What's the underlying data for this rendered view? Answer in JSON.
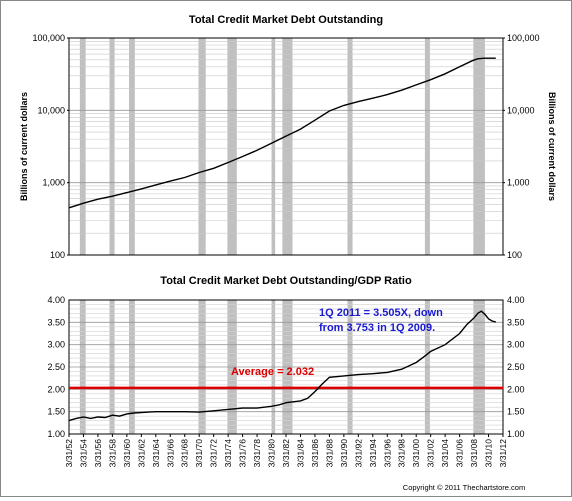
{
  "chart_data": [
    {
      "type": "line",
      "title": "Total Credit Market Debt Outstanding",
      "ylabel_left": "Billions of current dollars",
      "ylabel_right": "Billions of current dollars",
      "yscale": "log",
      "ylim": [
        100,
        100000
      ],
      "yticks": [
        "100,000",
        "10,000",
        "1,000",
        "100"
      ],
      "grid": true,
      "x": [
        1952.0,
        1954.0,
        1956.0,
        1958.0,
        1960.0,
        1962.0,
        1964.0,
        1966.0,
        1968.0,
        1970.0,
        1972.0,
        1974.0,
        1976.0,
        1978.0,
        1980.0,
        1982.0,
        1984.0,
        1986.0,
        1988.0,
        1990.0,
        1992.0,
        1994.0,
        1996.0,
        1998.0,
        2000.0,
        2002.0,
        2004.0,
        2006.0,
        2007.75,
        2008.5,
        2009.5,
        2011.0
      ],
      "series": [
        {
          "values": [
            450,
            520,
            590,
            650,
            730,
            820,
            930,
            1050,
            1180,
            1380,
            1580,
            1900,
            2300,
            2800,
            3500,
            4400,
            5500,
            7300,
            9800,
            11700,
            13200,
            14700,
            16500,
            19000,
            22500,
            26500,
            32000,
            40000,
            48500,
            51500,
            52500,
            52500
          ]
        }
      ]
    },
    {
      "type": "line",
      "title": "Total Credit Market Debt Outstanding/GDP Ratio",
      "ylim": [
        1.0,
        4.0
      ],
      "yticks": [
        "4.00",
        "3.50",
        "3.00",
        "2.50",
        "2.00",
        "1.50",
        "1.00"
      ],
      "grid": true,
      "x": [
        1952.0,
        1953.0,
        1954.0,
        1955.0,
        1956.0,
        1957.0,
        1958.0,
        1959.0,
        1960.0,
        1961.0,
        1962.0,
        1963.0,
        1964.0,
        1966.0,
        1968.0,
        1970.0,
        1972.0,
        1974.0,
        1976.0,
        1978.0,
        1980.0,
        1981.0,
        1982.0,
        1983.0,
        1984.0,
        1985.0,
        1986.0,
        1987.0,
        1988.0,
        1990.0,
        1992.0,
        1994.0,
        1996.0,
        1998.0,
        2000.0,
        2001.0,
        2002.0,
        2004.0,
        2006.0,
        2007.0,
        2008.0,
        2008.5,
        2009.0,
        2009.5,
        2010.0,
        2010.5,
        2011.0
      ],
      "series": [
        {
          "values": [
            1.3,
            1.35,
            1.38,
            1.35,
            1.38,
            1.37,
            1.42,
            1.4,
            1.45,
            1.47,
            1.48,
            1.49,
            1.5,
            1.5,
            1.5,
            1.49,
            1.52,
            1.55,
            1.58,
            1.58,
            1.62,
            1.65,
            1.7,
            1.72,
            1.74,
            1.8,
            1.95,
            2.12,
            2.27,
            2.3,
            2.33,
            2.35,
            2.38,
            2.45,
            2.6,
            2.72,
            2.85,
            3.0,
            3.25,
            3.45,
            3.6,
            3.7,
            3.75,
            3.68,
            3.58,
            3.53,
            3.505
          ]
        }
      ],
      "reference_line": {
        "y": 2.032,
        "color": "#dd0000",
        "label": "Average = 2.032"
      },
      "annotation": {
        "line1": "1Q 2011 = 3.505X, down",
        "line2": "from 3.753 in 1Q 2009.",
        "color": "#1a1ad0"
      }
    }
  ],
  "x_tick_labels": [
    "3/31/52",
    "3/31/54",
    "3/31/56",
    "3/31/58",
    "3/31/60",
    "3/31/62",
    "3/31/64",
    "3/31/66",
    "3/31/68",
    "3/31/70",
    "3/31/72",
    "3/31/74",
    "3/31/76",
    "3/31/78",
    "3/31/80",
    "3/31/82",
    "3/31/84",
    "3/31/86",
    "3/31/88",
    "3/31/90",
    "3/31/92",
    "3/31/94",
    "3/31/96",
    "3/31/98",
    "3/31/00",
    "3/31/02",
    "3/31/04",
    "3/31/06",
    "3/31/08",
    "3/31/10",
    "3/31/12"
  ],
  "recessions": [
    [
      1953.5,
      1954.3
    ],
    [
      1957.6,
      1958.3
    ],
    [
      1960.3,
      1961.1
    ],
    [
      1969.9,
      1970.9
    ],
    [
      1973.9,
      1975.2
    ],
    [
      1980.0,
      1980.5
    ],
    [
      1981.5,
      1982.9
    ],
    [
      1990.5,
      1991.2
    ],
    [
      2001.2,
      2001.9
    ],
    [
      2007.9,
      2009.5
    ]
  ],
  "recession_color": "#c0c0c0",
  "line_color": "#000000",
  "copyright": "Copyright © 2011 Thechartstore.com"
}
